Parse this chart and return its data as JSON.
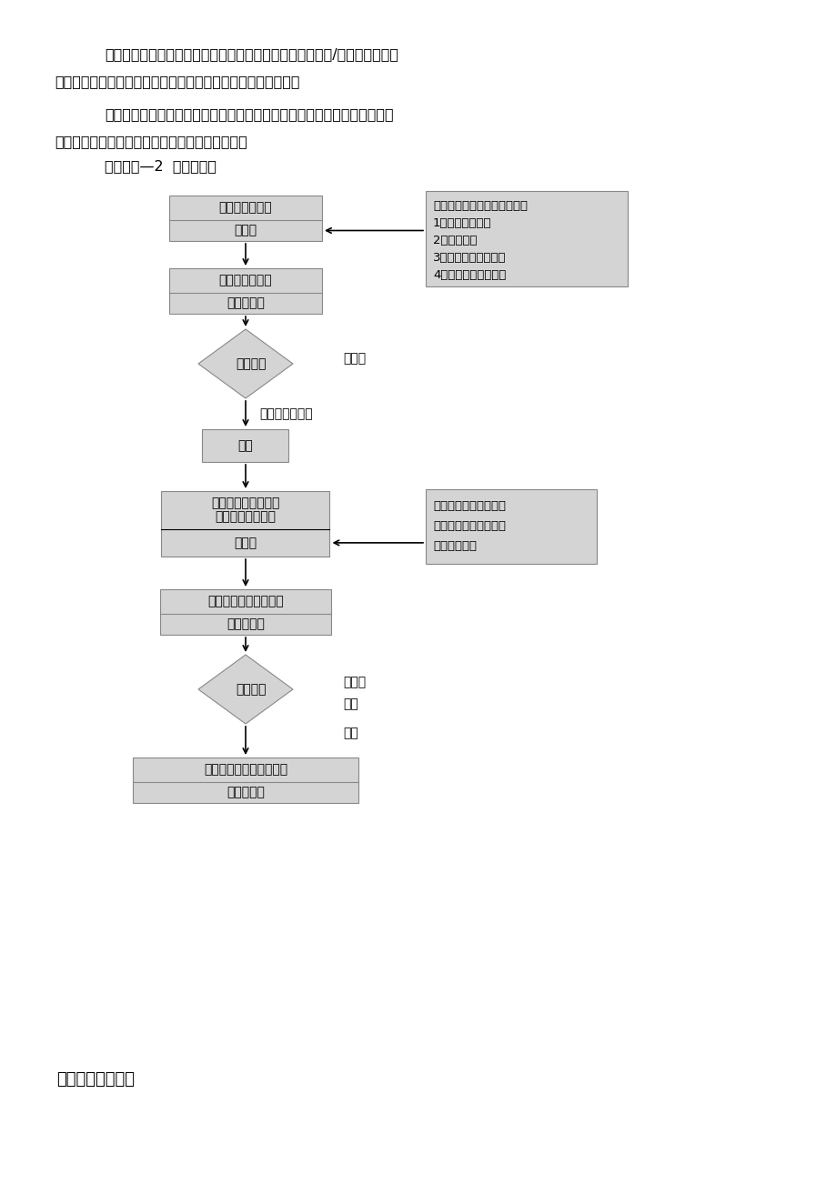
{
  "bg_color": "#ffffff",
  "text_color": "#000000",
  "box_fill": "#d4d4d4",
  "box_edge": "#888888",
  "para1_line1": "本工程装饰分部工程包括门窗工程、吹顶工程、地板、墙面/地砖铺设工程、",
  "para1_line2": "涂饰工程、细部工程及给排水工程、电气工程等几大分项工程。",
  "para2_line1": "根据民用建筑的室内墙面、顶棚等装饰工程的质量要求和验评标准，对装饰",
  "para2_line2": "工程质量的监理，可按装饰工程质量监理工作流程",
  "para3": "装饰一图—2  进行监理。",
  "footer": "五、给排水工程：",
  "node1_line1": "填写开工申请单",
  "node1_line2": "承包人",
  "node2_line1": "审核开工申请单",
  "node2_line2": "监理工程师",
  "diamond1_label": "审核结果",
  "node3": "开工",
  "node4_line1": "填报质量验收通知单",
  "node4_line2": "（每一分项工程）",
  "node4_line3": "承包人",
  "node5_line1": "现场检查、并抽样检测",
  "node5_line2": "监理工程师",
  "diamond2_label": "检查结果",
  "node6_line1": "填写分项工程质量验收单",
  "node6_line2": "监理工程师",
  "right_box1_lines": [
    "按要求填写各栏目，并附上：",
    "1、施工操作工艺",
    "2、质量要求",
    "3、各项材料试验报告",
    "4、产品出厂合格证书"
  ],
  "right_box2_lines": [
    "承包人根据合同条款、",
    "规范要求、自检合格，",
    "并报有关资料"
  ],
  "label_bu_tong_yi_1": "不同意",
  "label_tong_yi": "同意，并作批示",
  "label_bu_tong_yi_2": "不同意",
  "label_fan_gong": "返工",
  "label_he_ge": "合格"
}
